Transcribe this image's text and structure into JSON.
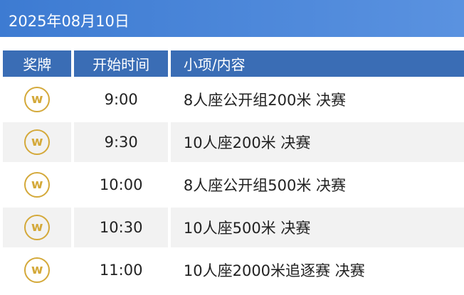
{
  "header": {
    "date": "2025年08月10日"
  },
  "table": {
    "columns": [
      "奖牌",
      "开始时间",
      "小项/内容"
    ],
    "rows": [
      {
        "medal": "gold-medal-icon",
        "time": "9:00",
        "event": "8人座公开组200米 决赛"
      },
      {
        "medal": "gold-medal-icon",
        "time": "9:30",
        "event": "10人座200米 决赛"
      },
      {
        "medal": "gold-medal-icon",
        "time": "10:00",
        "event": "8人座公开组500米 决赛"
      },
      {
        "medal": "gold-medal-icon",
        "time": "10:30",
        "event": "10人座500米 决赛"
      },
      {
        "medal": "gold-medal-icon",
        "time": "11:00",
        "event": "10人座2000米追逐赛 决赛"
      }
    ]
  }
}
